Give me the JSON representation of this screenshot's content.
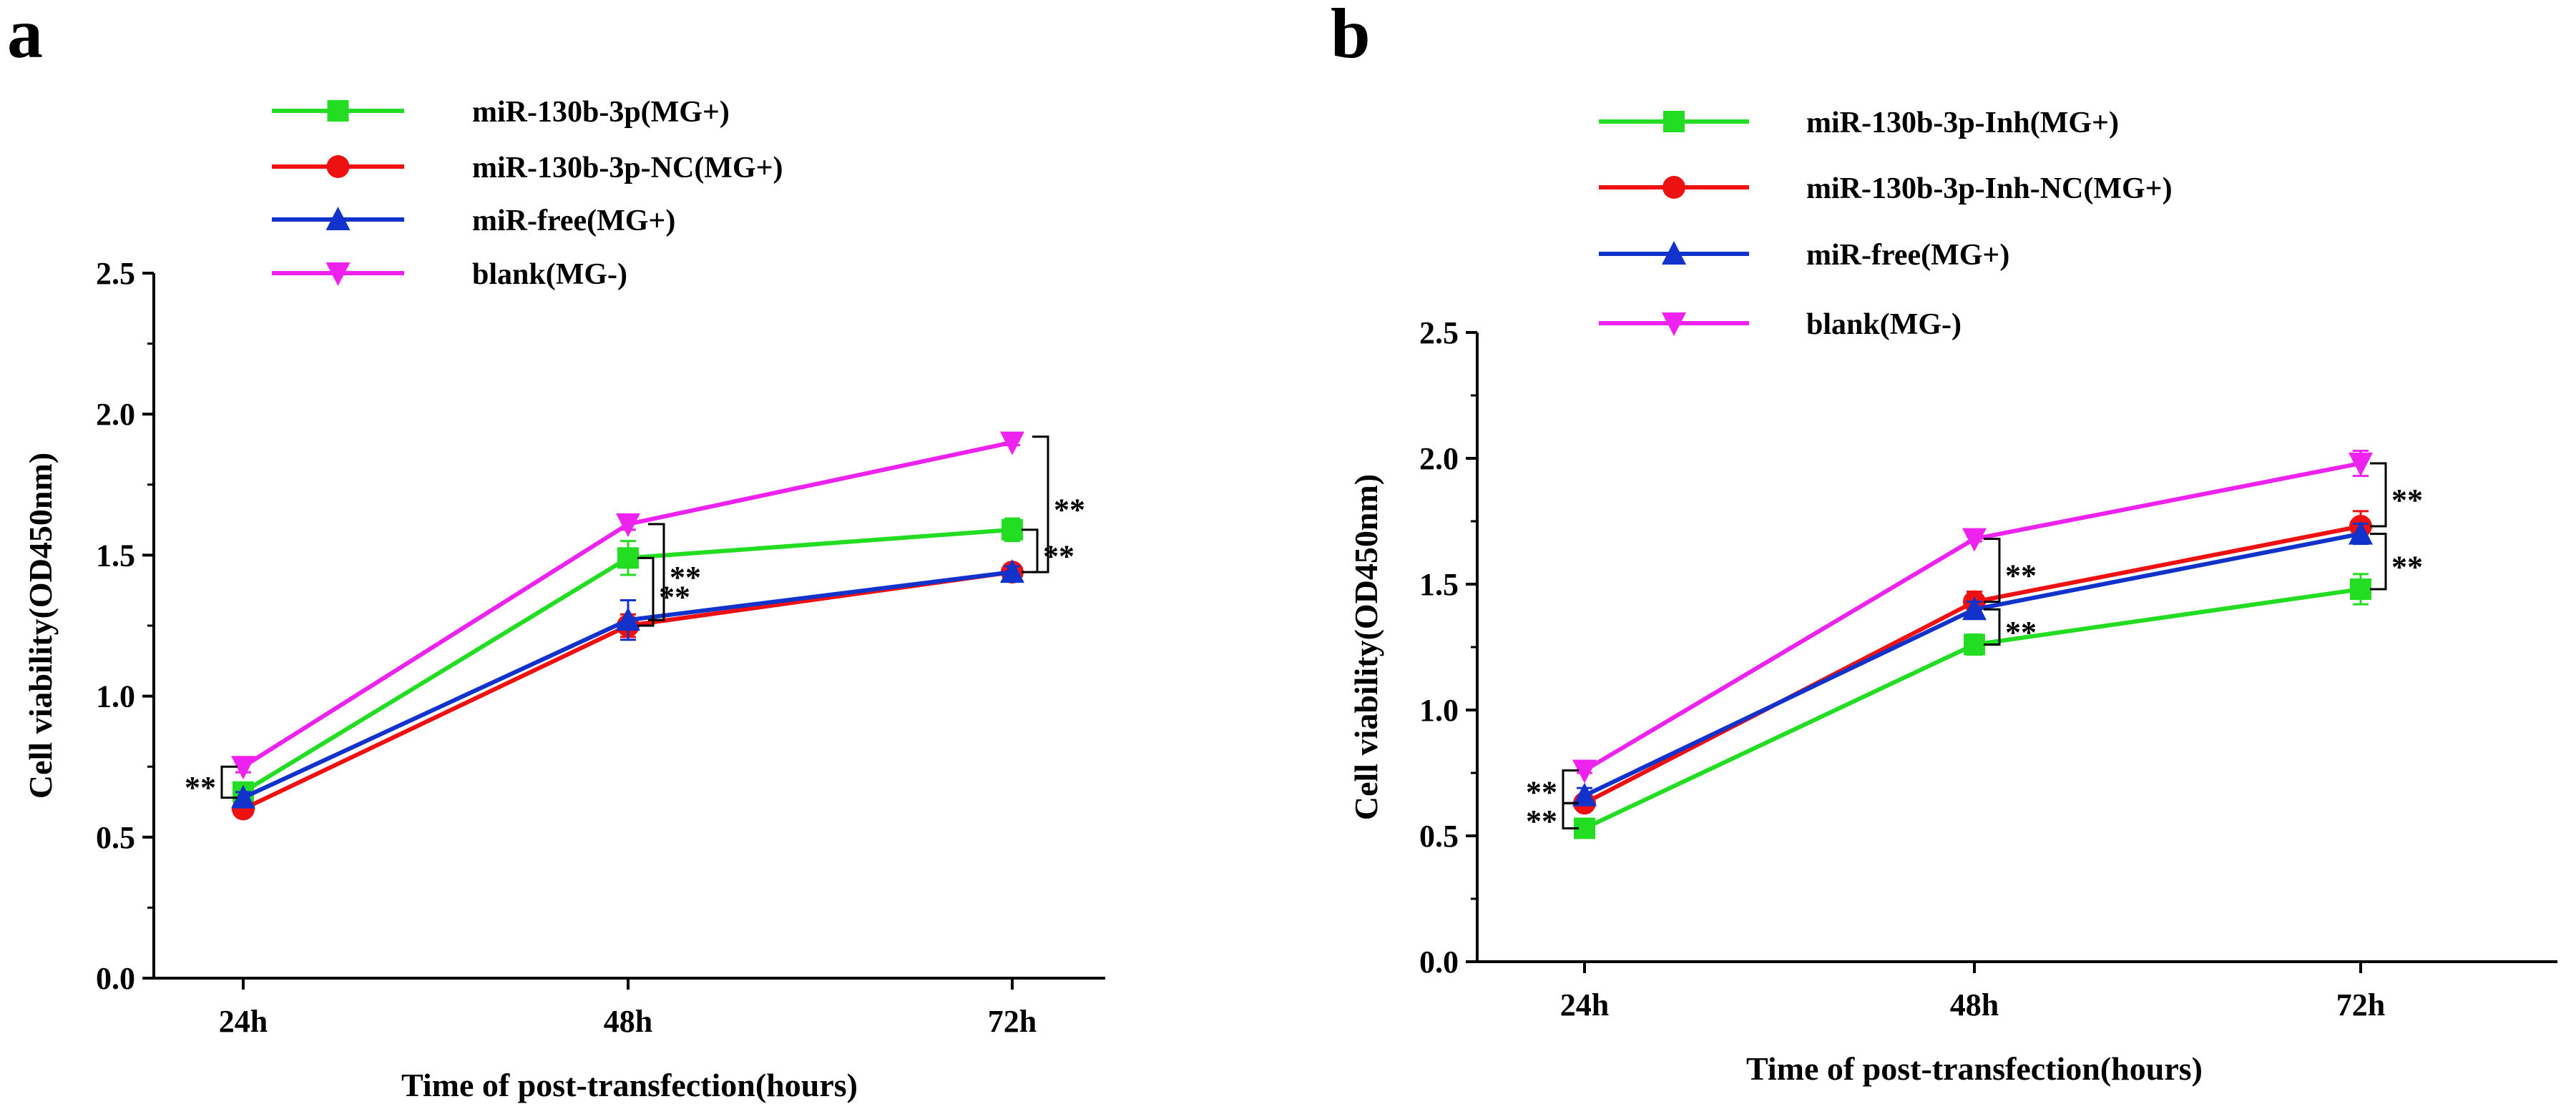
{
  "chart_data": [
    {
      "panel": "a",
      "type": "line",
      "title": "",
      "xlabel": "Time of post-transfection(hours)",
      "ylabel": "Cell viability(OD450nm)",
      "categories": [
        "24h",
        "48h",
        "72h"
      ],
      "ylim": [
        0.0,
        2.5
      ],
      "yticks": [
        "0.0",
        "0.5",
        "1.0",
        "1.5",
        "2.0",
        "2.5"
      ],
      "legend_position": "top",
      "grid": false,
      "series": [
        {
          "name": "miR-130b-3p(MG+)",
          "color": "#22dd22",
          "marker": "square",
          "values": [
            0.66,
            1.49,
            1.59
          ],
          "errors": [
            0.03,
            0.06,
            0.04
          ]
        },
        {
          "name": "miR-130b-3p-NC(MG+)",
          "color": "#ee1111",
          "marker": "circle",
          "values": [
            0.6,
            1.25,
            1.44
          ],
          "errors": [
            0.02,
            0.04,
            0.02
          ]
        },
        {
          "name": "miR-free(MG+)",
          "color": "#1133cc",
          "marker": "triangle-up",
          "values": [
            0.64,
            1.27,
            1.44
          ],
          "errors": [
            0.02,
            0.07,
            0.02
          ]
        },
        {
          "name": "blank(MG-)",
          "color": "#ee22ee",
          "marker": "triangle-down",
          "values": [
            0.75,
            1.61,
            1.9
          ],
          "errors": [
            0.02,
            0.02,
            0.01
          ]
        }
      ],
      "annotations": [
        {
          "text": "**",
          "category": 0,
          "from": 0.64,
          "to": 0.75,
          "side": "left"
        },
        {
          "text": "**",
          "category": 1,
          "from": 1.25,
          "to": 1.49,
          "side": "right"
        },
        {
          "text": "**",
          "category": 1,
          "from": 1.27,
          "to": 1.61,
          "side": "right"
        },
        {
          "text": "**",
          "category": 2,
          "from": 1.44,
          "to": 1.59,
          "side": "right"
        },
        {
          "text": "**",
          "category": 2,
          "from": 1.44,
          "to": 1.92,
          "side": "right"
        }
      ]
    },
    {
      "panel": "b",
      "type": "line",
      "title": "",
      "xlabel": "Time of post-transfection(hours)",
      "ylabel": "Cell viability(OD450nm)",
      "categories": [
        "24h",
        "48h",
        "72h"
      ],
      "ylim": [
        0.0,
        2.5
      ],
      "yticks": [
        "0.0",
        "0.5",
        "1.0",
        "1.5",
        "2.0",
        "2.5"
      ],
      "legend_position": "top",
      "grid": false,
      "series": [
        {
          "name": "miR-130b-3p-Inh(MG+)",
          "color": "#22dd22",
          "marker": "square",
          "values": [
            0.53,
            1.26,
            1.48
          ],
          "errors": [
            0.02,
            0.04,
            0.06
          ]
        },
        {
          "name": "miR-130b-3p-Inh-NC(MG+)",
          "color": "#ee1111",
          "marker": "circle",
          "values": [
            0.63,
            1.43,
            1.73
          ],
          "errors": [
            0.02,
            0.04,
            0.06
          ]
        },
        {
          "name": "miR-free(MG+)",
          "color": "#1133cc",
          "marker": "triangle-up",
          "values": [
            0.66,
            1.4,
            1.7
          ],
          "errors": [
            0.03,
            0.03,
            0.04
          ]
        },
        {
          "name": "blank(MG-)",
          "color": "#ee22ee",
          "marker": "triangle-down",
          "values": [
            0.76,
            1.68,
            1.98
          ],
          "errors": [
            0.01,
            0.01,
            0.05
          ]
        }
      ],
      "annotations": [
        {
          "text": "**",
          "category": 0,
          "from": 0.63,
          "to": 0.76,
          "side": "left"
        },
        {
          "text": "**",
          "category": 0,
          "from": 0.53,
          "to": 0.63,
          "side": "left"
        },
        {
          "text": "**",
          "category": 1,
          "from": 1.43,
          "to": 1.68,
          "side": "right"
        },
        {
          "text": "**",
          "category": 1,
          "from": 1.26,
          "to": 1.4,
          "side": "right"
        },
        {
          "text": "**",
          "category": 2,
          "from": 1.73,
          "to": 1.98,
          "side": "right"
        },
        {
          "text": "**",
          "category": 2,
          "from": 1.48,
          "to": 1.7,
          "side": "right"
        }
      ]
    }
  ]
}
